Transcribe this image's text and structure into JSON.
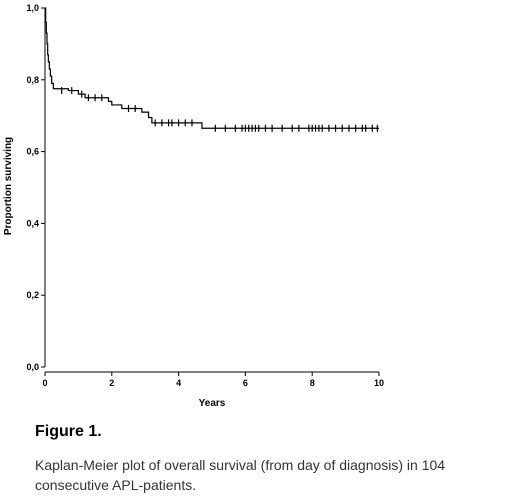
{
  "figure": {
    "title": "Figure 1.",
    "caption": "Kaplan-Meier plot  of overall survival (from day of diagnosis)  in 104 consecutive APL-patients."
  },
  "chart_data": {
    "type": "line",
    "subtype": "kaplan-meier",
    "xlabel": "Years",
    "ylabel": "Proportion surviving",
    "xlim": [
      0,
      10
    ],
    "ylim": [
      0,
      1
    ],
    "x_ticks": [
      0,
      2,
      4,
      6,
      8,
      10
    ],
    "x_tick_labels": [
      "0",
      "2",
      "4",
      "6",
      "8",
      "10"
    ],
    "y_ticks": [
      0,
      0.2,
      0.4,
      0.6,
      0.8,
      1.0
    ],
    "y_tick_labels": [
      "0,0",
      "0,2",
      "0,4",
      "0,6",
      "0,8",
      "1,0"
    ],
    "grid": false,
    "line_color": "#000000",
    "steps": [
      [
        0,
        1.0
      ],
      [
        0.02,
        0.96
      ],
      [
        0.04,
        0.93
      ],
      [
        0.06,
        0.9
      ],
      [
        0.08,
        0.87
      ],
      [
        0.1,
        0.85
      ],
      [
        0.13,
        0.83
      ],
      [
        0.16,
        0.81
      ],
      [
        0.2,
        0.79
      ],
      [
        0.25,
        0.775
      ],
      [
        0.7,
        0.77
      ],
      [
        1.0,
        0.76
      ],
      [
        1.2,
        0.75
      ],
      [
        1.9,
        0.74
      ],
      [
        2.0,
        0.73
      ],
      [
        2.3,
        0.72
      ],
      [
        2.9,
        0.71
      ],
      [
        3.1,
        0.695
      ],
      [
        3.2,
        0.68
      ],
      [
        4.7,
        0.665
      ],
      [
        10.0,
        0.665
      ]
    ],
    "censored": [
      [
        0.5,
        0.77
      ],
      [
        0.8,
        0.77
      ],
      [
        1.1,
        0.76
      ],
      [
        1.3,
        0.75
      ],
      [
        1.5,
        0.75
      ],
      [
        1.7,
        0.75
      ],
      [
        2.5,
        0.72
      ],
      [
        2.7,
        0.72
      ],
      [
        3.3,
        0.68
      ],
      [
        3.5,
        0.68
      ],
      [
        3.7,
        0.68
      ],
      [
        3.8,
        0.68
      ],
      [
        4.0,
        0.68
      ],
      [
        4.2,
        0.68
      ],
      [
        4.4,
        0.68
      ],
      [
        5.1,
        0.665
      ],
      [
        5.4,
        0.665
      ],
      [
        5.7,
        0.665
      ],
      [
        5.9,
        0.665
      ],
      [
        6.0,
        0.665
      ],
      [
        6.1,
        0.665
      ],
      [
        6.2,
        0.665
      ],
      [
        6.3,
        0.665
      ],
      [
        6.4,
        0.665
      ],
      [
        6.6,
        0.665
      ],
      [
        6.8,
        0.665
      ],
      [
        7.1,
        0.665
      ],
      [
        7.4,
        0.665
      ],
      [
        7.6,
        0.665
      ],
      [
        7.9,
        0.665
      ],
      [
        8.0,
        0.665
      ],
      [
        8.1,
        0.665
      ],
      [
        8.2,
        0.665
      ],
      [
        8.3,
        0.665
      ],
      [
        8.5,
        0.665
      ],
      [
        8.7,
        0.665
      ],
      [
        8.9,
        0.665
      ],
      [
        9.1,
        0.665
      ],
      [
        9.3,
        0.665
      ],
      [
        9.5,
        0.665
      ],
      [
        9.6,
        0.665
      ],
      [
        9.8,
        0.665
      ],
      [
        9.95,
        0.665
      ]
    ]
  }
}
